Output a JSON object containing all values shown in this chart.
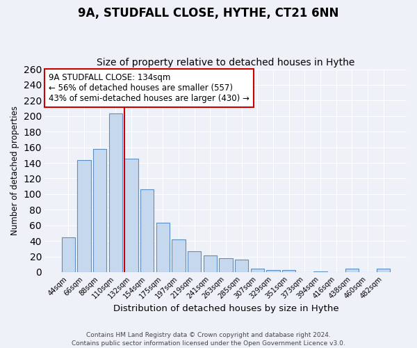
{
  "title": "9A, STUDFALL CLOSE, HYTHE, CT21 6NN",
  "subtitle": "Size of property relative to detached houses in Hythe",
  "xlabel": "Distribution of detached houses by size in Hythe",
  "ylabel": "Number of detached properties",
  "categories": [
    "44sqm",
    "66sqm",
    "88sqm",
    "110sqm",
    "132sqm",
    "154sqm",
    "175sqm",
    "197sqm",
    "219sqm",
    "241sqm",
    "263sqm",
    "285sqm",
    "307sqm",
    "329sqm",
    "351sqm",
    "373sqm",
    "394sqm",
    "416sqm",
    "438sqm",
    "460sqm",
    "482sqm"
  ],
  "values": [
    45,
    144,
    158,
    203,
    145,
    106,
    63,
    42,
    27,
    21,
    18,
    16,
    4,
    3,
    3,
    0,
    1,
    0,
    4,
    0,
    4
  ],
  "bar_color": "#c5d8ee",
  "bar_edge_color": "#5b8fc4",
  "vline_color": "#cc0000",
  "annotation_text": "9A STUDFALL CLOSE: 134sqm\n← 56% of detached houses are smaller (557)\n43% of semi-detached houses are larger (430) →",
  "annotation_box_color": "#ffffff",
  "annotation_box_edge_color": "#cc0000",
  "ylim": [
    0,
    260
  ],
  "yticks": [
    0,
    20,
    40,
    60,
    80,
    100,
    120,
    140,
    160,
    180,
    200,
    220,
    240,
    260
  ],
  "background_color": "#eef2f8",
  "grid_color": "#ffffff",
  "footer_text": "Contains HM Land Registry data © Crown copyright and database right 2024.\nContains public sector information licensed under the Open Government Licence v3.0.",
  "title_fontsize": 12,
  "subtitle_fontsize": 10,
  "xlabel_fontsize": 9.5,
  "ylabel_fontsize": 8.5,
  "annotation_fontsize": 8.5,
  "footer_fontsize": 6.5
}
